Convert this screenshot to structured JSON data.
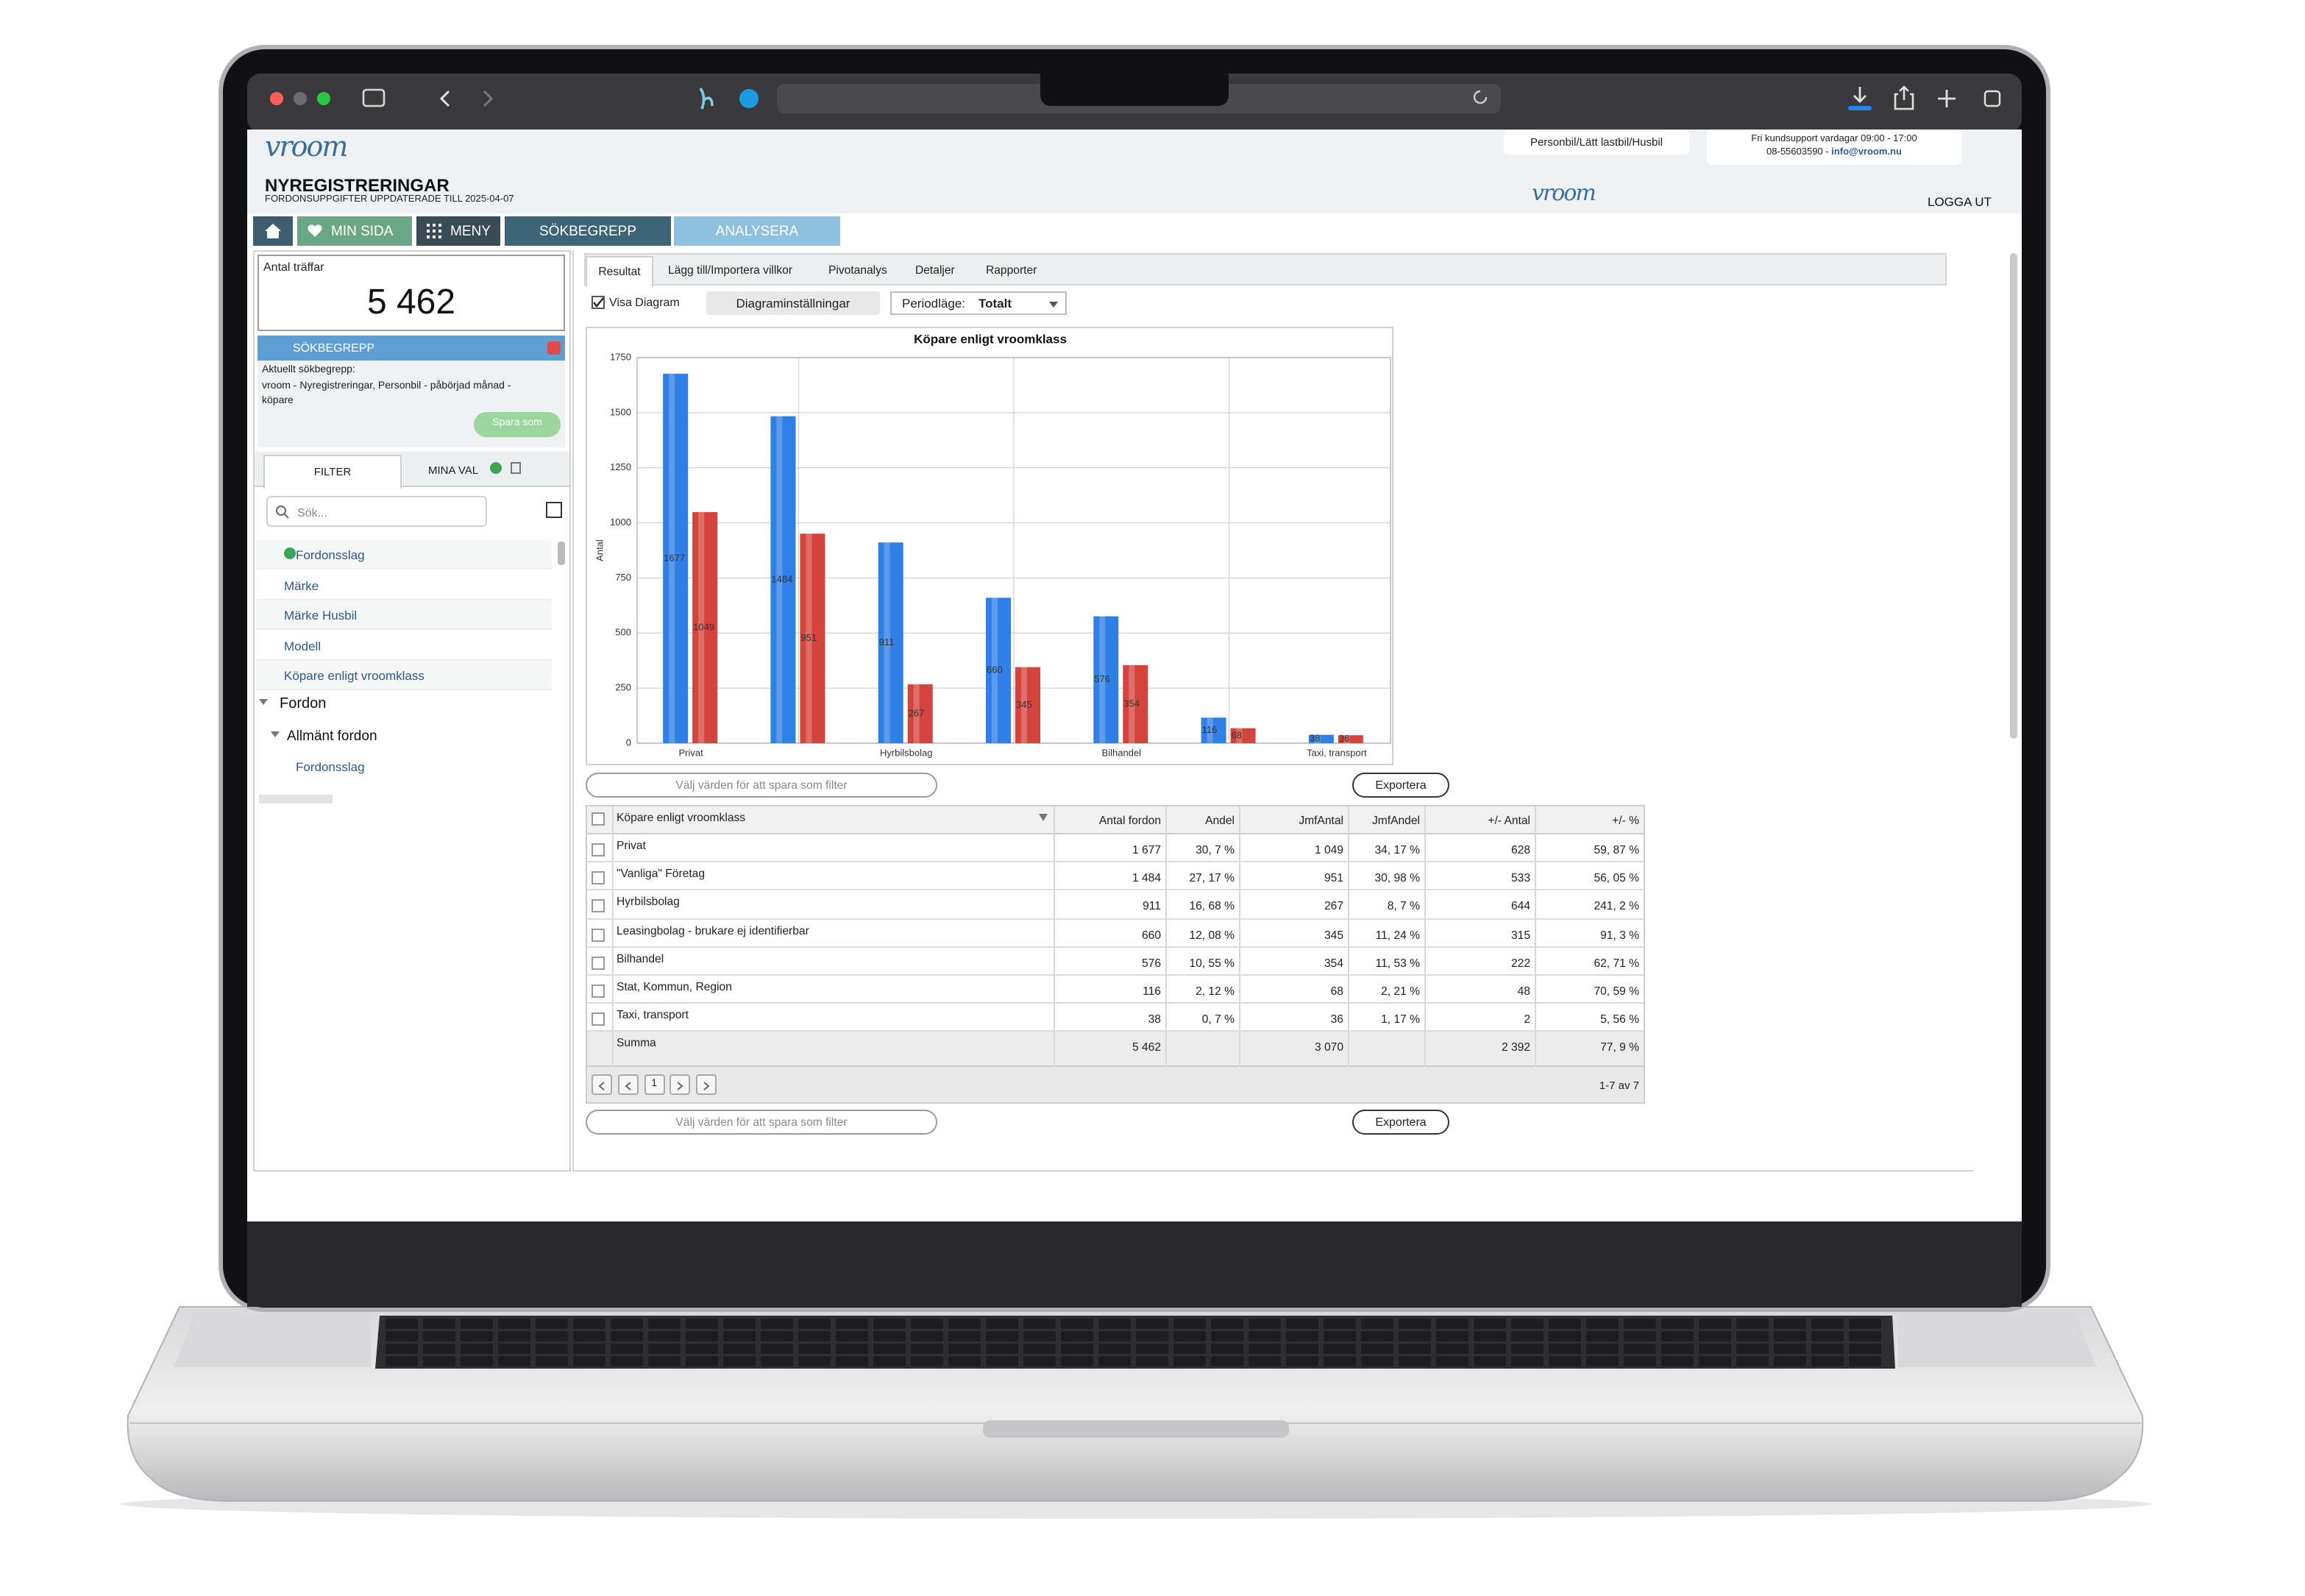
{
  "header": {
    "logo": "vroom",
    "title": "NYREGISTRERINGAR",
    "subtitle": "FORDONSUPPGIFTER UPPDATERADE TILL 2025-04-07",
    "vehicle_types": "Personbil/Lätt lastbil/Husbil",
    "support": "Fri kundsupport vardagar 09:00 - 17:00",
    "phone": "08-55603590 - ",
    "email": "info@vroom.nu",
    "logout": "LOGGA UT"
  },
  "nav": [
    "MIN SIDA",
    "MENY",
    "SÖKBEGREPP",
    "ANALYSERA"
  ],
  "sidebar": {
    "hits_label": "Antal träffar",
    "hits": "5 462",
    "search_terms_title": "SÖKBEGREPP",
    "current_label": "Aktuellt sökbegrepp:",
    "current": "vroom - Nyregistreringar, Personbil - påbörjad månad - köpare",
    "save": "Spara som",
    "tabs": [
      "FILTER",
      "MINA VAL"
    ],
    "search_placeholder": "Sök...",
    "filters": [
      "Fordonsslag",
      "Märke",
      "Märke Husbil",
      "Modell",
      "Köpare enligt vroomklass"
    ],
    "tree": {
      "label": "Fordon",
      "children": [
        {
          "label": "Allmänt fordon",
          "children": [
            "Fordonsslag"
          ]
        }
      ]
    }
  },
  "tabs": [
    "Resultat",
    "Lägg till/Importera villkor",
    "Pivotanalys",
    "Detaljer",
    "Rapporter"
  ],
  "controls": {
    "show_chart": "Visa Diagram",
    "chart_settings": "Diagraminställningar",
    "period_label": "Periodläge:",
    "period": "Totalt",
    "filter_placeholder": "Välj värden för att spara som filter",
    "export": "Exportera"
  },
  "chart": {
    "type": "bar",
    "title": "Köpare enligt vroomklass",
    "ylabel": "Antal",
    "categories": [
      "Privat",
      null,
      "Hyrbilsbolag",
      null,
      "Bilhandel",
      null,
      "Taxi, transport"
    ],
    "series": [
      {
        "color": "#2f7fe6",
        "values": [
          1677,
          1484,
          911,
          660,
          576,
          116,
          38
        ]
      },
      {
        "color": "#d5433d",
        "values": [
          1049,
          951,
          267,
          345,
          354,
          68,
          36
        ]
      }
    ],
    "ylim": [
      0,
      1750
    ],
    "yticks": [
      0,
      250,
      500,
      750,
      1000,
      1250,
      1500,
      1750
    ],
    "grid": true
  },
  "table": {
    "columns": [
      "Köpare enligt vroomklass",
      "Antal fordon",
      "Andel",
      "JmfAntal",
      "JmfAndel",
      "+/- Antal",
      "+/- %"
    ],
    "rows": [
      [
        "Privat",
        "1 677",
        "30, 7 %",
        "1 049",
        "34, 17 %",
        "628",
        "59, 87 %"
      ],
      [
        "\"Vanliga\" Företag",
        "1 484",
        "27, 17 %",
        "951",
        "30, 98 %",
        "533",
        "56, 05 %"
      ],
      [
        "Hyrbilsbolag",
        "911",
        "16, 68 %",
        "267",
        "8, 7 %",
        "644",
        "241, 2 %"
      ],
      [
        "Leasingbolag - brukare ej identifierbar",
        "660",
        "12, 08 %",
        "345",
        "11, 24 %",
        "315",
        "91, 3 %"
      ],
      [
        "Bilhandel",
        "576",
        "10, 55 %",
        "354",
        "11, 53 %",
        "222",
        "62, 71 %"
      ],
      [
        "Stat, Kommun, Region",
        "116",
        "2, 12 %",
        "68",
        "2, 21 %",
        "48",
        "70, 59 %"
      ],
      [
        "Taxi, transport",
        "38",
        "0, 7 %",
        "36",
        "1, 17 %",
        "2",
        "5, 56 %"
      ]
    ],
    "total": [
      "Summa",
      "5 462",
      null,
      "3 070",
      null,
      "2 392",
      "77, 9 %"
    ],
    "page": "1",
    "range": "1-7 av 7"
  }
}
